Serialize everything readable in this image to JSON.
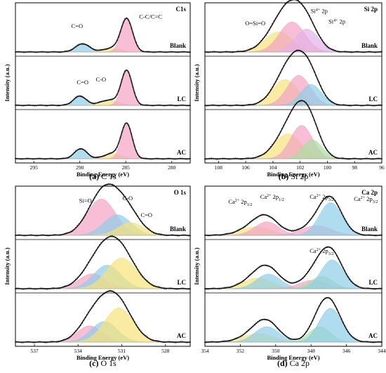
{
  "panels": [
    {
      "id": "C1s",
      "caption_letter": "(a)",
      "caption_text": " C 1s",
      "title": "C1s",
      "xlabel": "Binding Energy (eV)",
      "ylabel": "Intensity (a.u.)",
      "xlim": [
        297,
        278
      ],
      "ticks": [
        295,
        290,
        285,
        280
      ],
      "tick_labels": [
        "295",
        "290",
        "285",
        "280"
      ],
      "samples": [
        "Blank",
        "LC",
        "AC"
      ],
      "annotations": [
        {
          "text": "C=O",
          "sample": 0,
          "x": 290.3,
          "y": 0.82
        },
        {
          "text": "C-C/C=C",
          "sample": 0,
          "x": 282.3,
          "y": 1.15
        },
        {
          "text": "C=O",
          "sample": 1,
          "x": 289.7,
          "y": 0.72
        },
        {
          "text": "C-O",
          "sample": 1,
          "x": 287.7,
          "y": 0.82
        }
      ]
    },
    {
      "id": "Si2p",
      "caption_letter": "(b)",
      "caption_text": " Si 2p",
      "title": "Si 2p",
      "xlabel": "Binding Energy (eV)",
      "ylabel": "Intensity (a.u.)",
      "xlim": [
        109,
        96
      ],
      "ticks": [
        108,
        106,
        104,
        102,
        100,
        98,
        96
      ],
      "tick_labels": [
        "108",
        "106",
        "104",
        "102",
        "100",
        "98",
        "96"
      ],
      "samples": [
        "Blank",
        "LC",
        "AC"
      ],
      "annotations": [
        {
          "text": "O=Si=O",
          "sample": 0,
          "x": 105.3,
          "y": 0.82,
          "sup": ""
        },
        {
          "text": "Si",
          "sup": "4+",
          "tail": " 2p",
          "sample": 0,
          "x": 100.6,
          "y": 1.2
        },
        {
          "text": "Si",
          "sup": "4+",
          "tail": " 2p",
          "sample": 0,
          "x": 99.3,
          "y": 0.88
        }
      ]
    },
    {
      "id": "O1s",
      "caption_letter": "(c)",
      "caption_text": " O 1s",
      "title": "O 1s",
      "xlabel": "Binding Energy (eV)",
      "ylabel": "Intensity (a.u.)",
      "xlim": [
        538.3,
        526.3
      ],
      "ticks": [
        537,
        534,
        531,
        528
      ],
      "tick_labels": [
        "537",
        "534",
        "531",
        "528"
      ],
      "samples": [
        "Blank",
        "LC",
        "AC"
      ],
      "annotations": [
        {
          "text": "Si=O",
          "sample": 0,
          "x": 533.5,
          "y": 0.98
        },
        {
          "text": "C-O",
          "sample": 0,
          "x": 530.6,
          "y": 1.05
        },
        {
          "text": "C=O",
          "sample": 0,
          "x": 529.3,
          "y": 0.55
        }
      ]
    },
    {
      "id": "Ca2p",
      "caption_letter": "(d)",
      "caption_text": " Ca 2p",
      "title": "Ca 2p",
      "xlabel": "Binding Energy (eV)",
      "ylabel": "Intensity (a.u.)",
      "xlim": [
        354,
        344
      ],
      "ticks": [
        354,
        352,
        350,
        348,
        346,
        344
      ],
      "tick_labels": [
        "354",
        "352",
        "350",
        "348",
        "346",
        "344"
      ],
      "samples": [
        "Blank",
        "LC",
        "AC"
      ],
      "annotations": [
        {
          "text": "Ca",
          "sup": "2+",
          "tail": " 2p",
          "sub": "1/2",
          "sample": 0,
          "x": 352.0,
          "y": 1.05
        },
        {
          "text": "Ca",
          "sup": "2+",
          "tail": " 2p",
          "sub": "1/2",
          "sample": 0,
          "x": 350.2,
          "y": 1.22
        },
        {
          "text": "Ca",
          "sup": "2+",
          "tail": " 2p",
          "sub": "3/2",
          "sample": 0,
          "x": 347.4,
          "y": 1.22
        },
        {
          "text": "Ca",
          "sup": "2+",
          "tail": " 2p",
          "sub": "3/2",
          "sample": 0,
          "x": 344.9,
          "y": 1.15
        },
        {
          "text": "Ca",
          "sup": "2+",
          "tail": " 2p",
          "sub": "3/2",
          "sample": 1,
          "x": 347.4,
          "y": 1.2
        }
      ]
    }
  ],
  "chart_data": [
    {
      "type": "line",
      "title": "C1s",
      "xlabel": "Binding Energy (eV)",
      "ylabel": "Intensity (a.u.)",
      "xlim": [
        297,
        278
      ],
      "x_reversed": true,
      "series": [
        {
          "name": "Blank",
          "peaks": [
            {
              "label": "C=O",
              "center": 289.7,
              "height": 0.22,
              "fwhm": 1.8,
              "color": "#8ecde8"
            },
            {
              "label": "C-O",
              "center": 286.5,
              "height": 0.1,
              "fwhm": 2.2,
              "color": "#f6e27a"
            },
            {
              "label": "C-C/C=C",
              "center": 284.9,
              "height": 0.88,
              "fwhm": 1.5,
              "color": "#f4a3c4"
            }
          ]
        },
        {
          "name": "LC",
          "peaks": [
            {
              "label": "C=O",
              "center": 290.0,
              "height": 0.25,
              "fwhm": 1.6,
              "color": "#8ecde8"
            },
            {
              "label": "C-O",
              "center": 286.8,
              "height": 0.14,
              "fwhm": 2.4,
              "color": "#f6e27a"
            },
            {
              "label": "C-C/C=C",
              "center": 284.9,
              "height": 0.92,
              "fwhm": 1.4,
              "color": "#f4a3c4"
            }
          ]
        },
        {
          "name": "AC",
          "peaks": [
            {
              "label": "C=O",
              "center": 289.9,
              "height": 0.27,
              "fwhm": 1.6,
              "color": "#8ecde8"
            },
            {
              "label": "C-O",
              "center": 286.4,
              "height": 0.14,
              "fwhm": 2.2,
              "color": "#f6e27a"
            },
            {
              "label": "C-C/C=C",
              "center": 284.9,
              "height": 0.92,
              "fwhm": 1.4,
              "color": "#f4a3c4"
            }
          ]
        }
      ]
    },
    {
      "type": "line",
      "title": "Si 2p",
      "xlabel": "Binding Energy (eV)",
      "ylabel": "Intensity (a.u.)",
      "xlim": [
        109,
        96
      ],
      "x_reversed": true,
      "series": [
        {
          "name": "Blank",
          "peaks": [
            {
              "label": "O=Si=O",
              "center": 103.6,
              "height": 0.48,
              "fwhm": 2.4,
              "color": "#f6e27a"
            },
            {
              "label": "Si4+ 2p",
              "center": 102.6,
              "height": 0.72,
              "fwhm": 2.2,
              "color": "#f4a3c4"
            },
            {
              "label": "Si4+ 2p",
              "center": 101.5,
              "height": 0.55,
              "fwhm": 2.0,
              "color": "#e3b0e8"
            }
          ]
        },
        {
          "name": "LC",
          "peaks": [
            {
              "label": "O=Si=O",
              "center": 103.1,
              "height": 0.62,
              "fwhm": 2.2,
              "color": "#f6e27a"
            },
            {
              "label": "Si4+ 2p",
              "center": 102.1,
              "height": 0.72,
              "fwhm": 2.0,
              "color": "#f4a3c4"
            },
            {
              "label": "Si4+ 2p",
              "center": 101.2,
              "height": 0.5,
              "fwhm": 1.8,
              "color": "#8ecde8"
            }
          ]
        },
        {
          "name": "AC",
          "peaks": [
            {
              "label": "O=Si=O",
              "center": 102.9,
              "height": 0.6,
              "fwhm": 2.3,
              "color": "#f6e27a"
            },
            {
              "label": "Si4+ 2p",
              "center": 101.9,
              "height": 0.8,
              "fwhm": 1.9,
              "color": "#f4a3c4"
            },
            {
              "label": "Si4+ 2p",
              "center": 101.1,
              "height": 0.45,
              "fwhm": 1.7,
              "color": "#a8e0a0"
            }
          ]
        }
      ]
    },
    {
      "type": "line",
      "title": "O 1s",
      "xlabel": "Binding Energy (eV)",
      "ylabel": "Intensity (a.u.)",
      "xlim": [
        538.3,
        526.3
      ],
      "x_reversed": true,
      "series": [
        {
          "name": "Blank",
          "peaks": [
            {
              "label": "Si=O",
              "center": 532.4,
              "height": 0.85,
              "fwhm": 2.3,
              "color": "#f4a3c4"
            },
            {
              "label": "C-O",
              "center": 531.3,
              "height": 0.48,
              "fwhm": 2.2,
              "color": "#8ecde8"
            },
            {
              "label": "C=O",
              "center": 530.4,
              "height": 0.3,
              "fwhm": 2.0,
              "color": "#f6e27a"
            }
          ]
        },
        {
          "name": "LC",
          "peaks": [
            {
              "label": "Si=O",
              "center": 533.0,
              "height": 0.35,
              "fwhm": 2.2,
              "color": "#f4a3c4"
            },
            {
              "label": "C-O",
              "center": 532.0,
              "height": 0.55,
              "fwhm": 2.2,
              "color": "#8ecde8"
            },
            {
              "label": "C=O",
              "center": 531.0,
              "height": 0.72,
              "fwhm": 2.4,
              "color": "#f6e27a"
            }
          ]
        },
        {
          "name": "AC",
          "peaks": [
            {
              "label": "Si=O",
              "center": 533.2,
              "height": 0.38,
              "fwhm": 2.0,
              "color": "#f4a3c4"
            },
            {
              "label": "C-O",
              "center": 532.2,
              "height": 0.48,
              "fwhm": 2.1,
              "color": "#8ecde8"
            },
            {
              "label": "C=O",
              "center": 531.2,
              "height": 0.8,
              "fwhm": 2.3,
              "color": "#f6e27a"
            }
          ]
        }
      ]
    },
    {
      "type": "line",
      "title": "Ca 2p",
      "xlabel": "Binding Energy (eV)",
      "ylabel": "Intensity (a.u.)",
      "xlim": [
        354,
        344
      ],
      "x_reversed": true,
      "series": [
        {
          "name": "Blank",
          "peaks": [
            {
              "label": "Ca2+ 2p1/2",
              "center": 351.1,
              "height": 0.22,
              "fwhm": 2.0,
              "color": "#f6e27a"
            },
            {
              "label": "Ca2+ 2p1/2",
              "center": 350.5,
              "height": 0.35,
              "fwhm": 1.6,
              "color": "#f4a3c4"
            },
            {
              "label": "Ca2+ 2p3/2",
              "center": 347.7,
              "height": 0.25,
              "fwhm": 2.0,
              "color": "#f4a3c4"
            },
            {
              "label": "Ca2+ 2p3/2",
              "center": 346.9,
              "height": 0.85,
              "fwhm": 1.5,
              "color": "#8ecde8"
            }
          ]
        },
        {
          "name": "LC",
          "peaks": [
            {
              "label": "Ca2+ 2p1/2",
              "center": 351.0,
              "height": 0.28,
              "fwhm": 1.9,
              "color": "#f6e27a"
            },
            {
              "label": "Ca2+ 2p1/2",
              "center": 350.4,
              "height": 0.38,
              "fwhm": 1.6,
              "color": "#8ecde8"
            },
            {
              "label": "Ca2+ 2p3/2",
              "center": 347.9,
              "height": 0.22,
              "fwhm": 1.8,
              "color": "#f4a3c4"
            },
            {
              "label": "Ca2+ 2p3/2",
              "center": 347.4,
              "height": 0.32,
              "fwhm": 1.5,
              "color": "#a8e0a0"
            },
            {
              "label": "Ca2+ 2p3/2",
              "center": 346.8,
              "height": 0.75,
              "fwhm": 1.5,
              "color": "#8ecde8"
            }
          ]
        },
        {
          "name": "AC",
          "peaks": [
            {
              "label": "Ca2+ 2p1/2",
              "center": 351.0,
              "height": 0.22,
              "fwhm": 2.0,
              "color": "#f6e27a"
            },
            {
              "label": "Ca2+ 2p1/2",
              "center": 350.5,
              "height": 0.4,
              "fwhm": 1.6,
              "color": "#8ecde8"
            },
            {
              "label": "Ca2+ 2p3/2",
              "center": 347.5,
              "height": 0.4,
              "fwhm": 1.4,
              "color": "#a8e0a0"
            },
            {
              "label": "Ca2+ 2p3/2",
              "center": 346.9,
              "height": 0.88,
              "fwhm": 1.5,
              "color": "#8ecde8"
            }
          ]
        }
      ]
    }
  ]
}
